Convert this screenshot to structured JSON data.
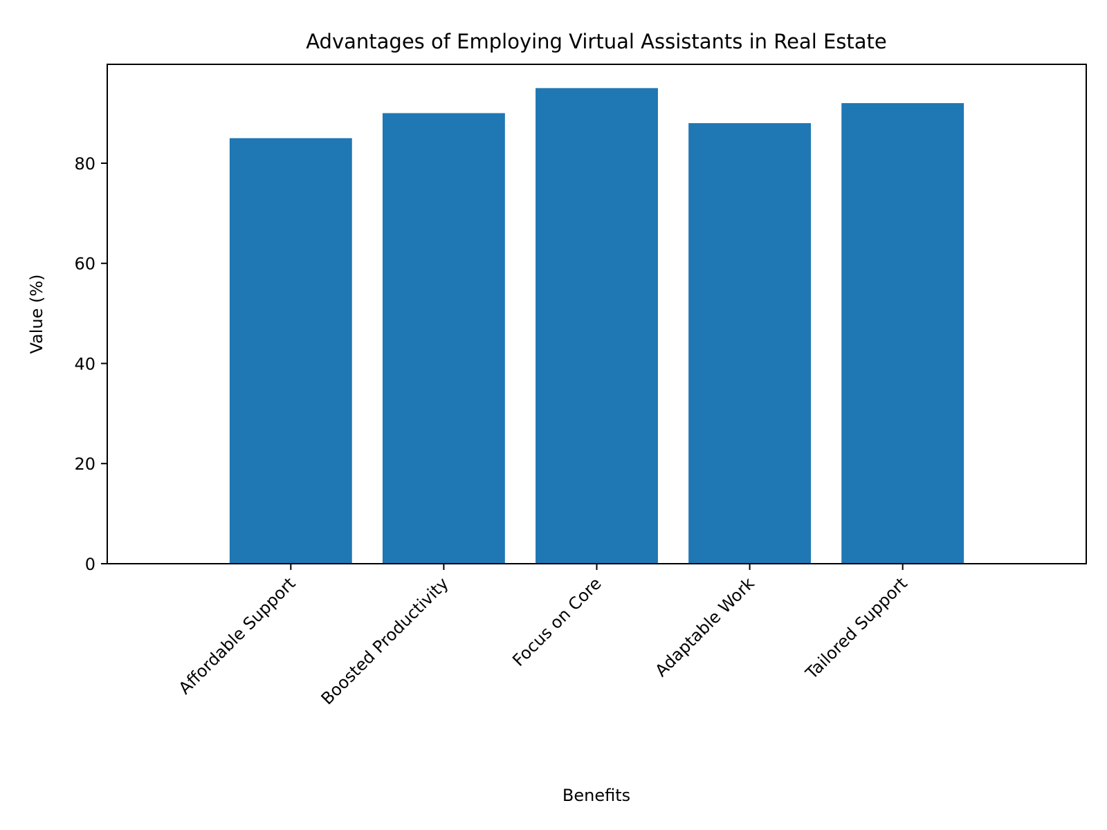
{
  "chart_data": {
    "type": "bar",
    "title": "Advantages of Employing Virtual Assistants in Real Estate",
    "xlabel": "Benefits",
    "ylabel": "Value (%)",
    "categories": [
      "Affordable Support",
      "Boosted Productivity",
      "Focus on Core",
      "Adaptable Work",
      "Tailored Support"
    ],
    "values": [
      85,
      90,
      95,
      88,
      92
    ],
    "ylim": [
      0,
      99.75
    ],
    "yticks": [
      0,
      20,
      40,
      60,
      80
    ],
    "grid": false,
    "legend": "none",
    "bar_color": "#1f77b4"
  }
}
